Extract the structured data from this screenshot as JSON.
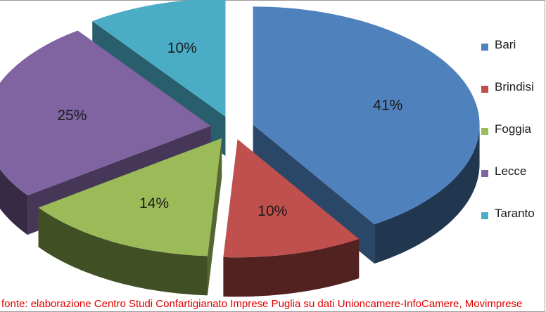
{
  "chart_data": {
    "type": "pie",
    "style": "3d-exploded",
    "categories": [
      "Bari",
      "Brindisi",
      "Foggia",
      "Lecce",
      "Taranto"
    ],
    "values": [
      41,
      10,
      14,
      25,
      10
    ],
    "labels": [
      "41%",
      "10%",
      "14%",
      "25%",
      "10%"
    ],
    "colors": [
      "#4f81bd",
      "#c0504d",
      "#9bbb59",
      "#8064a2",
      "#4bacc6"
    ],
    "legend_position": "right"
  },
  "legend": {
    "items": [
      {
        "label": "Bari",
        "color": "#4f81bd"
      },
      {
        "label": "Brindisi",
        "color": "#c0504d"
      },
      {
        "label": "Foggia",
        "color": "#9bbb59"
      },
      {
        "label": "Lecce",
        "color": "#8064a2"
      },
      {
        "label": "Taranto",
        "color": "#4bacc6"
      }
    ]
  },
  "source": "fonte: elaborazione Centro Studi Confartigianato Imprese Puglia su dati Unioncamere-InfoCamere, Movimprese"
}
